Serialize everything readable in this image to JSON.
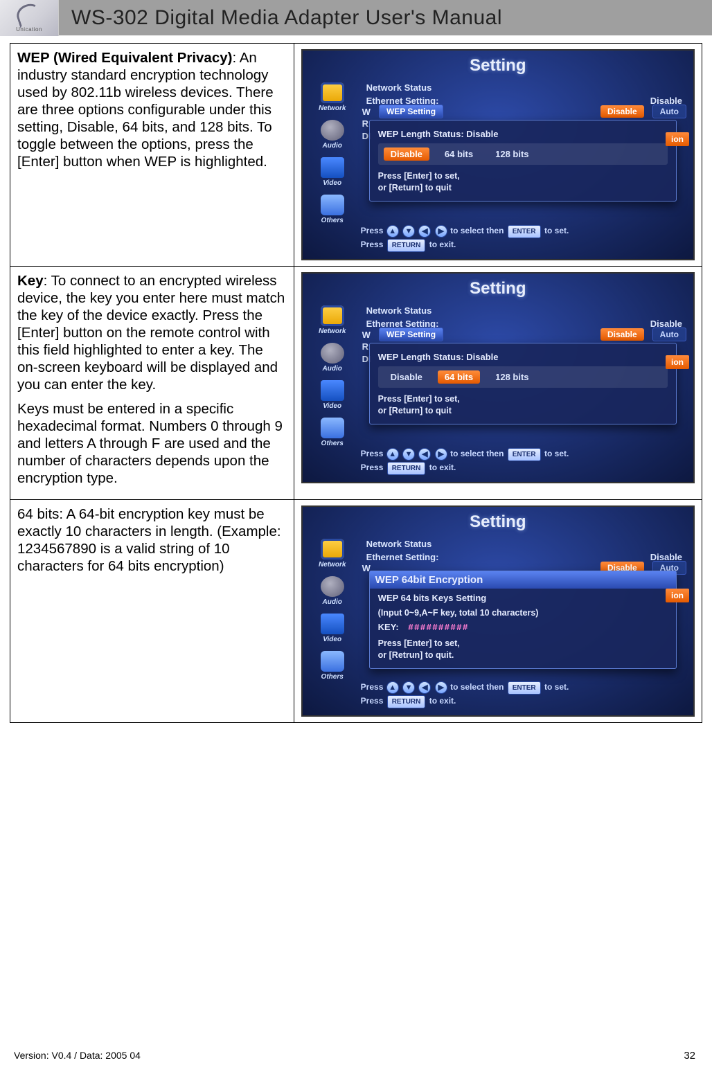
{
  "header": {
    "logo_label": "Unication",
    "title": "WS-302 Digital Media Adapter User's Manual"
  },
  "footer": {
    "version_text": "Version: V0.4 / Data: 2005 04",
    "page_number": "32"
  },
  "rows": [
    {
      "paragraphs": [
        "<strong>WEP (Wired Equivalent Privacy)</strong>: An industry standard encryption technology used by 802.11b wireless devices. There are three options configurable under this setting, Disable, 64 bits, and 128 bits. To toggle between the options, press the [Enter] button when WEP is highlighted."
      ],
      "screenshot": {
        "title": "Setting",
        "rows": [
          {
            "lbl": "Network Status",
            "val": ""
          },
          {
            "lbl": "Ethernet Setting:",
            "val": "Disable"
          }
        ],
        "top_pills": {
          "w_prefix": "W",
          "label": "WEP Setting",
          "disable": "Disable",
          "auto": "Auto"
        },
        "dialog": {
          "status": "WEP Length Status: Disable",
          "options": [
            "Disable",
            "64 bits",
            "128 bits"
          ],
          "selected": 0,
          "hint1": "Press [Enter] to set,",
          "hint2": "or [Return] to quit"
        },
        "ion": "ion",
        "side": [
          "Network",
          "Audio",
          "Video",
          "Others"
        ],
        "help1_a": "Press ",
        "help1_b": " to select then ",
        "help1_enter": "ENTER",
        "help1_c": " to set.",
        "help2_a": "Press ",
        "help2_return": "RETURN",
        "help2_b": " to exit.",
        "r_prefix": "R",
        "di_prefix": "DI"
      }
    },
    {
      "paragraphs": [
        "<strong>Key</strong>: To connect to an encrypted wireless device, the key you enter here must match the key of the device exactly. Press the [Enter] button on the remote control with this field highlighted to enter a key. The on-screen keyboard will be displayed and you can enter the key.",
        "Keys must be entered in a specific hexadecimal format. Numbers 0 through 9 and letters A through F are used and the number of characters depends upon the encryption type."
      ],
      "screenshot": {
        "title": "Setting",
        "rows": [
          {
            "lbl": "Network Status",
            "val": ""
          },
          {
            "lbl": "Ethernet Setting:",
            "val": "Disable"
          }
        ],
        "top_pills": {
          "w_prefix": "W",
          "label": "WEP Setting",
          "disable": "Disable",
          "auto": "Auto"
        },
        "dialog": {
          "status": "WEP Length Status: Disable",
          "options": [
            "Disable",
            "64 bits",
            "128 bits"
          ],
          "selected": 1,
          "hint1": "Press [Enter] to set,",
          "hint2": "or [Return] to quit"
        },
        "ion": "ion",
        "side": [
          "Network",
          "Audio",
          "Video",
          "Others"
        ],
        "help1_a": "Press ",
        "help1_b": " to select then ",
        "help1_enter": "ENTER",
        "help1_c": " to set.",
        "help2_a": "Press ",
        "help2_return": "RETURN",
        "help2_b": " to exit.",
        "r_prefix": "R",
        "di_prefix": "DI"
      }
    },
    {
      "paragraphs": [
        "64 bits: A 64-bit encryption key must be exactly 10 characters in length. (Example: 1234567890 is a valid string of 10 characters for 64 bits encryption)"
      ],
      "screenshot": {
        "title": "Setting",
        "rows": [
          {
            "lbl": "Network Status",
            "val": ""
          },
          {
            "lbl": "Ethernet Setting:",
            "val": "Disable"
          }
        ],
        "top_pills": {
          "w_prefix": "W",
          "label": "",
          "disable": "Disable",
          "auto": "Auto"
        },
        "dialog64": {
          "title": "WEP 64bit Encryption",
          "line1": "WEP 64 bits Keys Setting",
          "line2": "(Input 0~9,A~F key, total 10 characters)",
          "key_label": "KEY:",
          "key_value": "##########",
          "hint1": "Press [Enter] to set,",
          "hint2": "or [Retrun] to quit."
        },
        "ion": "ion",
        "side": [
          "Network",
          "Audio",
          "Video",
          "Others"
        ],
        "help1_a": "Press ",
        "help1_b": " to select then ",
        "help1_enter": "ENTER",
        "help1_c": " to set.",
        "help2_a": "Press ",
        "help2_return": "RETURN",
        "help2_b": " to exit."
      }
    }
  ],
  "colors": {
    "header_band": "#9f9f9f",
    "border": "#000000",
    "screenshot_bg_inner": "#2d4aa8",
    "screenshot_bg_outer": "#0d1840",
    "pill_orange_a": "#ff8a3a",
    "pill_orange_b": "#e55a00",
    "dialog_border": "#5a7ad0"
  }
}
